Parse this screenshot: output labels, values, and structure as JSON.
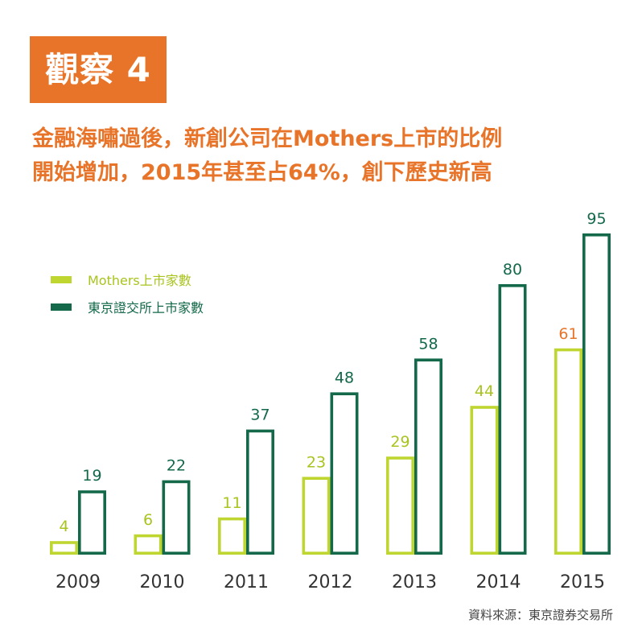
{
  "badge": "觀察 4",
  "title_lines": [
    "金融海嘯過後，新創公司在Mothers上市的比例",
    "開始增加，2015年甚至占64%，創下歷史新高"
  ],
  "source": "資料來源：東京證券交易所",
  "colors": {
    "mothers": "#BFD630",
    "mothers_label": "#A9C31F",
    "tse": "#13694A",
    "highlight": "#E8742A"
  },
  "chart_data": {
    "type": "bar",
    "categories": [
      "2009",
      "2010",
      "2011",
      "2012",
      "2013",
      "2014",
      "2015"
    ],
    "series": [
      {
        "name": "Mothers上市家數",
        "values": [
          4,
          6,
          11,
          23,
          29,
          44,
          61
        ]
      },
      {
        "name": "東京證交所上市家數",
        "values": [
          19,
          22,
          37,
          48,
          58,
          80,
          95
        ]
      }
    ],
    "highlight": {
      "series": 0,
      "category": "2015"
    },
    "legend_position": "top-left",
    "grid": false
  }
}
